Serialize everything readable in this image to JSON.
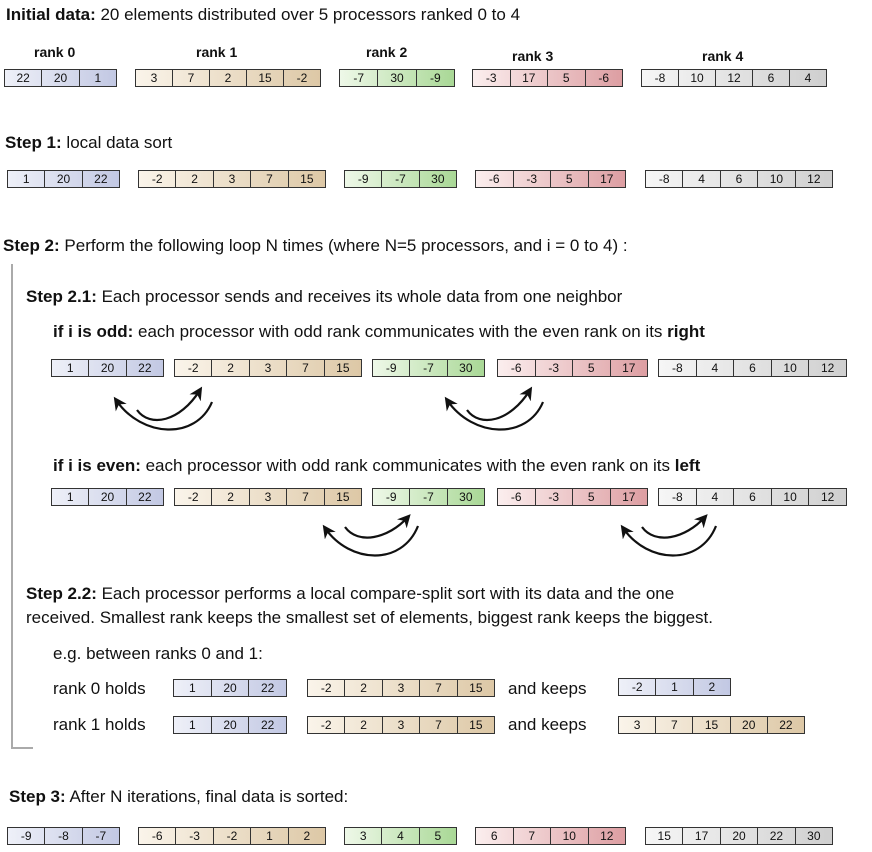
{
  "colors": {
    "blue": "#c2c8e3",
    "tan": "#ddc8a6",
    "green": "#a9d896",
    "red": "#dd9ea2",
    "gray": "#cfcfcf"
  },
  "initial": {
    "label": "Initial data:",
    "text": " 20 elements distributed over 5 processors ranked 0 to 4",
    "ranks": [
      "rank 0",
      "rank 1",
      "rank 2",
      "rank 3",
      "rank 4"
    ],
    "arrays": [
      [
        "22",
        "20",
        "1"
      ],
      [
        "3",
        "7",
        "2",
        "15",
        "-2"
      ],
      [
        "-7",
        "30",
        "-9"
      ],
      [
        "-3",
        "17",
        "5",
        "-6"
      ],
      [
        "-8",
        "10",
        "12",
        "6",
        "4"
      ]
    ]
  },
  "step1": {
    "label": "Step 1:",
    "text": " local data sort",
    "arrays": [
      [
        "1",
        "20",
        "22"
      ],
      [
        "-2",
        "2",
        "3",
        "7",
        "15"
      ],
      [
        "-9",
        "-7",
        "30"
      ],
      [
        "-6",
        "-3",
        "5",
        "17"
      ],
      [
        "-8",
        "4",
        "6",
        "10",
        "12"
      ]
    ]
  },
  "step2": {
    "label": "Step 2:",
    "text": " Perform the following loop N times (where N=5 processors, and i = 0 to 4) :",
    "sub1": {
      "label": "Step 2.1:",
      "text": " Each processor sends and receives its whole data from one neighbor"
    },
    "odd": {
      "label": "if i is odd:",
      "text": " each processor with odd rank communicates with the even rank on its ",
      "emph": "right"
    },
    "even": {
      "label": "if i is even:",
      "text": " each processor with odd rank communicates with the even rank on its ",
      "emph": "left"
    },
    "sub2": {
      "label": "Step 2.2:",
      "text1": " Each processor performs a local compare-split sort with its data and the one",
      "text2": "received. Smallest rank keeps the smallest set of elements, biggest rank keeps the biggest."
    },
    "example": {
      "intro": "e.g. between ranks 0 and 1:",
      "row0_label": "rank 0 holds",
      "row1_label": "rank 1 holds",
      "keeps": "and keeps",
      "a": [
        "1",
        "20",
        "22"
      ],
      "b": [
        "-2",
        "2",
        "3",
        "7",
        "15"
      ],
      "keep0": [
        "-2",
        "1",
        "2"
      ],
      "keep1": [
        "3",
        "7",
        "15",
        "20",
        "22"
      ]
    }
  },
  "step3": {
    "label": "Step 3:",
    "text": " After N iterations, final data is sorted:",
    "arrays": [
      [
        "-9",
        "-8",
        "-7"
      ],
      [
        "-6",
        "-3",
        "-2",
        "1",
        "2"
      ],
      [
        "3",
        "4",
        "5"
      ],
      [
        "6",
        "7",
        "10",
        "12"
      ],
      [
        "15",
        "17",
        "20",
        "22",
        "30"
      ]
    ]
  }
}
